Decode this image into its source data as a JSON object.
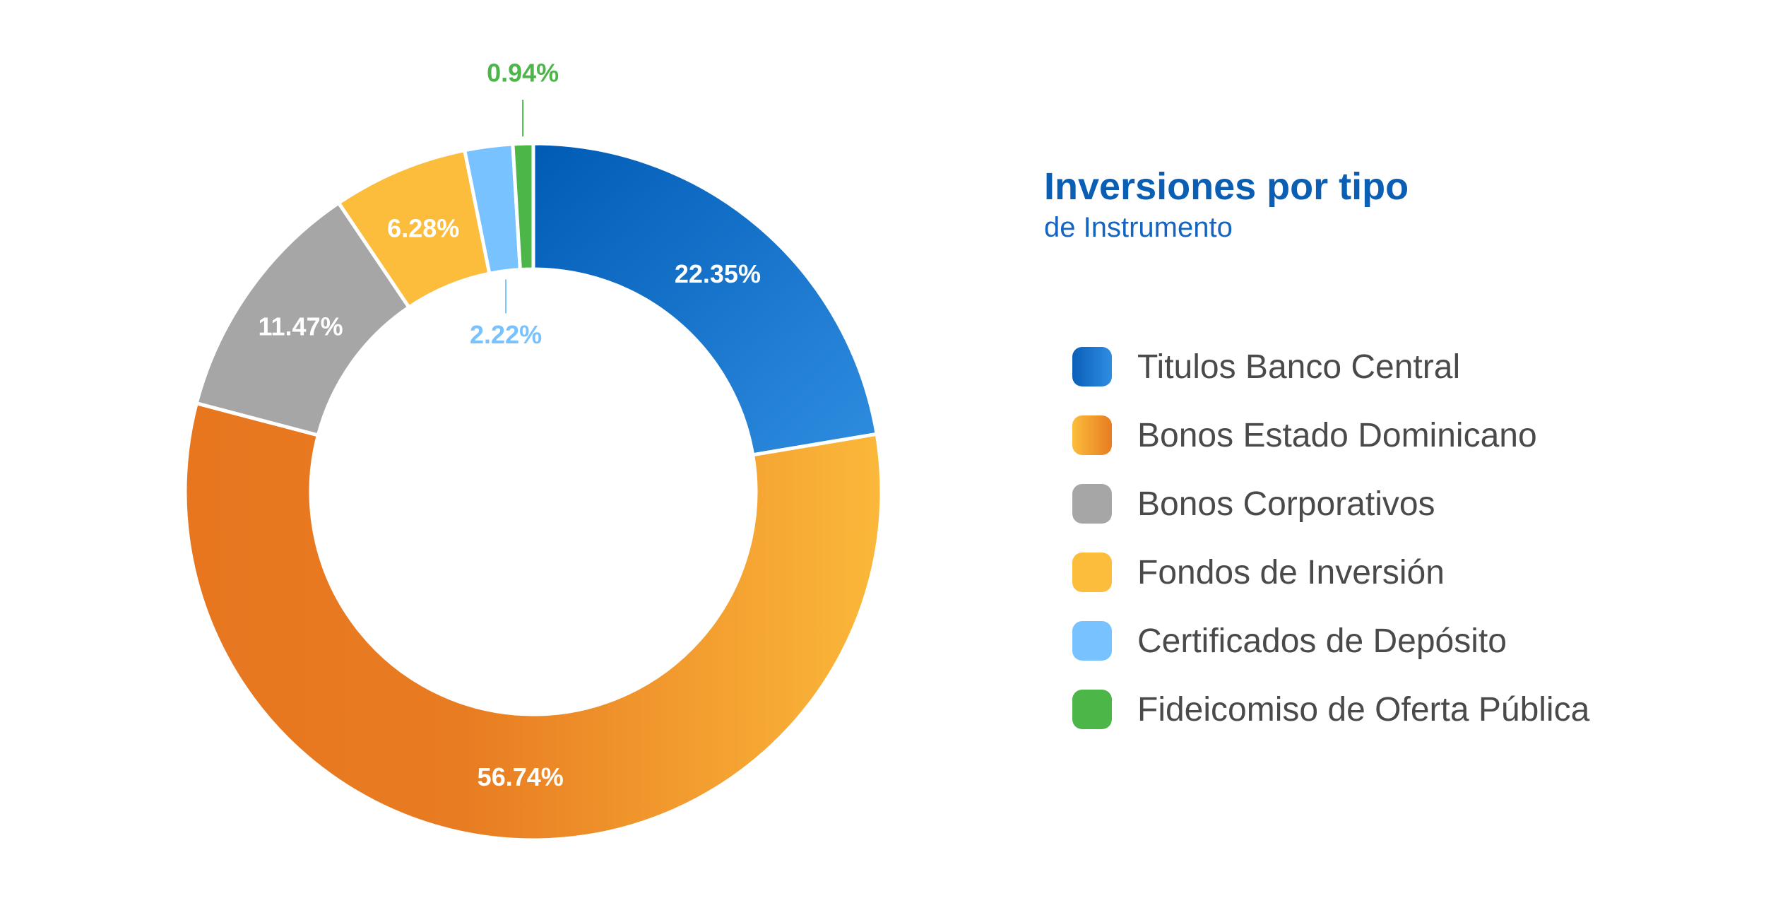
{
  "title": "Inversiones por tipo",
  "subtitle": "de Instrumento",
  "colors": {
    "title": "#0a5fb4",
    "subtitle": "#1565c0",
    "text": "#4a4a4a"
  },
  "chart_data": {
    "type": "pie",
    "variant": "donut",
    "title": "Inversiones por tipo",
    "subtitle": "de Instrumento",
    "legend_position": "right",
    "labels": [
      "Titulos Banco Central",
      "Bonos Estado Dominicano",
      "Bonos Corporativos",
      "Fondos de Inversión",
      "Certificados de Depósito",
      "Fideicomiso de Oferta Pública"
    ],
    "values": [
      22.35,
      56.74,
      11.47,
      6.28,
      2.22,
      0.94
    ],
    "value_labels": [
      "22.35%",
      "56.74%",
      "11.47%",
      "6.28%",
      "2.22%",
      "0.94%"
    ],
    "colors": [
      "#1f79d1",
      "#f0952c",
      "#a6a6a6",
      "#fbbd3b",
      "#78c2ff",
      "#4cb648"
    ],
    "label_colors": [
      "#ffffff",
      "#ffffff",
      "#ffffff",
      "#ffffff",
      "#78c2ff",
      "#4cb648"
    ]
  }
}
